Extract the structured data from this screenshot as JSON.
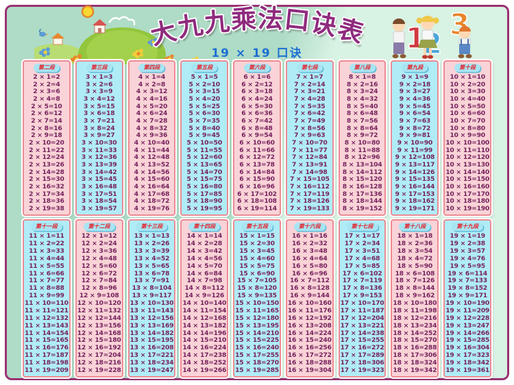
{
  "poster": {
    "title": "大九九乘法口诀表",
    "subtitle": "19 × 19 口诀"
  },
  "colors": {
    "frame_border": "#9b3172",
    "background": "#aedcc6",
    "background_light": "#d8f2e3",
    "column_pink": "#f9d3d7",
    "column_cyan": "#b0ecf6",
    "column_border": "#ec8b94",
    "pill_bg": "#a8e5f3",
    "pill_border": "#62bcd9",
    "pill_text": "#e4232b",
    "equation_text": "#75215c",
    "title_color": "#8f2b7e",
    "subtitle_color": "#1d6fd2"
  },
  "illustrations": {
    "left": "hillside-landscape-with-sun-houses-flowers",
    "right": "three-children-holding-numbers-1-2-3"
  },
  "table": {
    "sections": [
      {
        "columns": [
          {
            "header": "第二段",
            "tint": "pink",
            "equations": [
              "2 × 1=2",
              "2 × 2=4",
              "2 × 3=6",
              "2 × 4=8",
              "2 × 5=10",
              "2 × 6=12",
              "2 × 7=14",
              "2 × 8=16",
              "2 × 9=18",
              "2 × 10=20",
              "2 × 11=22",
              "2 × 12=24",
              "2 × 13=26",
              "2 × 14=28",
              "2 × 15=30",
              "2 × 16=32",
              "2 × 17=34",
              "2 × 18=36",
              "2 × 19=38"
            ]
          },
          {
            "header": "第三段",
            "tint": "cyan",
            "equations": [
              "3 × 1=3",
              "3 × 2=6",
              "3 × 3=9",
              "3 × 4=12",
              "3 × 5=15",
              "3 × 6=18",
              "3 × 7=21",
              "3 × 8=24",
              "3 × 9=27",
              "3 × 10=30",
              "3 × 11=33",
              "3 × 12=36",
              "3 × 13=39",
              "3 × 14=42",
              "3 × 15=45",
              "3 × 16=48",
              "3 × 17=51",
              "3 × 18=54",
              "3 × 19=57"
            ]
          },
          {
            "header": "第四段",
            "tint": "pink",
            "equations": [
              "4 × 1=4",
              "4 × 2=8",
              "4 × 3=12",
              "4 × 4=16",
              "4 × 5=20",
              "4 × 6=24",
              "4 × 7=28",
              "4 × 8=32",
              "4 × 9=36",
              "4 × 10=40",
              "4 × 11=44",
              "4 × 12=48",
              "4 × 13=52",
              "4 × 14=56",
              "4 × 15=60",
              "4 × 16=64",
              "4 × 17=68",
              "4 × 18=72",
              "4 × 19=76"
            ]
          },
          {
            "header": "第五段",
            "tint": "cyan",
            "equations": [
              "5 × 1=5",
              "5 × 2=10",
              "5 × 3=15",
              "5 × 4=20",
              "5 × 5=25",
              "5 × 6=30",
              "5 × 7=35",
              "5 × 8=40",
              "5 × 9=45",
              "5 × 10=50",
              "5 × 11=55",
              "5 × 12=60",
              "5 × 13=65",
              "5 × 14=70",
              "5 × 15=75",
              "5 × 16=80",
              "5 × 17=85",
              "5 × 18=90",
              "5 × 19=95"
            ]
          },
          {
            "header": "第六段",
            "tint": "pink",
            "equations": [
              "6 × 1=6",
              "6 × 2=12",
              "6 × 3=18",
              "6 × 4=24",
              "6 × 5=30",
              "6 × 6=36",
              "6 × 7=42",
              "6 × 8=48",
              "6 × 9=54",
              "6 × 10=60",
              "6 × 11=66",
              "6 × 12=72",
              "6 × 13=78",
              "6 × 14=84",
              "6 × 15=90",
              "6 × 16=96",
              "6 × 17=102",
              "6 × 18=108",
              "6 × 19=114"
            ]
          },
          {
            "header": "第七段",
            "tint": "cyan",
            "equations": [
              "7 × 1=7",
              "7 × 2=14",
              "7 × 3=21",
              "7 × 4=28",
              "7 × 5=35",
              "7 × 6=42",
              "7 × 7=49",
              "7 × 8=56",
              "7 × 9=63",
              "7 × 10=70",
              "7 × 11=77",
              "7 × 12=84",
              "7 × 13=91",
              "7 × 14=98",
              "7 × 15=105",
              "7 × 16=112",
              "7 × 17=119",
              "7 × 18=126",
              "7 × 19=133"
            ]
          },
          {
            "header": "第八段",
            "tint": "pink",
            "equations": [
              "8 × 1=8",
              "8 × 2=16",
              "8 × 3=24",
              "8 × 4=32",
              "8 × 5=40",
              "8 × 6=48",
              "8 × 7=56",
              "8 × 8=64",
              "8 × 9=72",
              "8 × 10=80",
              "8 × 11=88",
              "8 × 12=96",
              "8 × 13=104",
              "8 × 14=112",
              "8 × 15=120",
              "8 × 16=128",
              "8 × 17=136",
              "8 × 18=144",
              "8 × 19=152"
            ]
          },
          {
            "header": "第九段",
            "tint": "cyan",
            "equations": [
              "9 × 1=9",
              "9 × 2=18",
              "9 × 3=27",
              "9 × 4=36",
              "9 × 5=45",
              "9 × 6=54",
              "9 × 7=63",
              "9 × 8=72",
              "9 × 9=81",
              "9 × 10=90",
              "9 × 11=99",
              "9 × 12=108",
              "9 × 13=117",
              "9 × 14=126",
              "9 × 15=135",
              "9 × 16=144",
              "9 × 17=153",
              "9 × 18=162",
              "9 × 19=171"
            ]
          },
          {
            "header": "第十段",
            "tint": "pink",
            "equations": [
              "10 × 1=10",
              "10 × 2=20",
              "10 × 3=30",
              "10 × 4=40",
              "10 × 5=50",
              "10 × 6=60",
              "10 × 7=70",
              "10 × 8=80",
              "10 × 9=90",
              "10 × 10=100",
              "10 × 11=110",
              "10 × 12=120",
              "10 × 13=130",
              "10 × 14=140",
              "10 × 15=150",
              "10 × 16=160",
              "10 × 17=170",
              "10 × 18=180",
              "10 × 19=190"
            ]
          }
        ]
      },
      {
        "columns": [
          {
            "header": "第十一段",
            "tint": "cyan",
            "equations": [
              "11 × 1=11",
              "11 × 2=22",
              "11 × 3=33",
              "11 × 4=44",
              "11 × 5=55",
              "11 × 6=66",
              "11 × 7=77",
              "11 × 8=88",
              "11 × 9=99",
              "11 × 10=110",
              "11 × 11=121",
              "11 × 12=132",
              "11 × 13=143",
              "11 × 14=154",
              "11 × 15=165",
              "11 × 16=176",
              "11 × 17=187",
              "11 × 18=198",
              "11 × 19=209"
            ]
          },
          {
            "header": "第十二段",
            "tint": "pink",
            "equations": [
              "12 × 1=12",
              "12 × 2=24",
              "12 × 3=36",
              "12 × 4=48",
              "12 × 5=60",
              "12 × 6=72",
              "12 × 7=84",
              "12 × 8=96",
              "12 × 9=108",
              "12 × 10=120",
              "12 × 11=132",
              "12 × 12=144",
              "12 × 13=156",
              "12 × 14=168",
              "12 × 15=180",
              "12 × 16=192",
              "12 × 17=204",
              "12 × 18=216",
              "12 × 19=228"
            ]
          },
          {
            "header": "第十三段",
            "tint": "cyan",
            "equations": [
              "13 × 1=13",
              "13 × 2=26",
              "13 × 3=39",
              "13 × 4=52",
              "13 × 5=65",
              "13 × 6=78",
              "13 × 7=91",
              "13 × 8=104",
              "13 × 9=117",
              "13 × 10=130",
              "13 × 11=143",
              "13 × 12=156",
              "13 × 13=169",
              "13 × 14=182",
              "13 × 15=195",
              "13 × 16=208",
              "13 × 17=221",
              "13 × 18=234",
              "13 × 19=247"
            ]
          },
          {
            "header": "第十四段",
            "tint": "pink",
            "equations": [
              "14 × 1=14",
              "14 × 2=28",
              "14 × 3=42",
              "14 × 4=56",
              "14 × 5=70",
              "14 × 6=84",
              "14 × 7=98",
              "14 × 8=112",
              "14 × 9=126",
              "14 × 10=140",
              "14 × 11=154",
              "14 × 12=168",
              "14 × 13=182",
              "14 × 14=196",
              "14 × 15=210",
              "14 × 16=224",
              "14 × 17=238",
              "14 × 18=252",
              "14 × 19=266"
            ]
          },
          {
            "header": "第十五段",
            "tint": "cyan",
            "equations": [
              "15 × 1=15",
              "15 × 2=30",
              "15 × 3=45",
              "15 × 4=60",
              "15 × 5=75",
              "15 × 6=90",
              "15 × 7=105",
              "15 × 8=120",
              "15 × 9=135",
              "15 × 10=150",
              "15 × 11=165",
              "15 × 12=180",
              "15 × 13=195",
              "15 × 14=210",
              "15 × 15=225",
              "15 × 16=240",
              "15 × 17=255",
              "15 × 18=270",
              "15 × 19=285"
            ]
          },
          {
            "header": "第十六段",
            "tint": "pink",
            "equations": [
              "16 × 1=16",
              "16 × 2=32",
              "16 × 3=48",
              "16 × 4=64",
              "16 × 5=80",
              "16 × 6=96",
              "16 × 7=112",
              "16 × 8=128",
              "16 × 9=144",
              "16 × 10=160",
              "16 × 11=176",
              "16 × 12=192",
              "16 × 13=208",
              "16 × 14=224",
              "16 × 15=240",
              "16 × 16=256",
              "16 × 17=272",
              "16 × 18=288",
              "16 × 19=304"
            ]
          },
          {
            "header": "第十七段",
            "tint": "cyan",
            "equations": [
              "17 × 1=17",
              "17 × 2=34",
              "17 × 3=51",
              "17 × 4=68",
              "17 × 5=85",
              "17 × 6=102",
              "17 × 7=119",
              "17 × 8=136",
              "17 × 9=153",
              "17 × 10=170",
              "17 × 11=187",
              "17 × 12=204",
              "17 × 13=221",
              "17 × 14=238",
              "17 × 15=255",
              "17 × 16=272",
              "17 × 17=289",
              "17 × 18=306",
              "17 × 19=323"
            ]
          },
          {
            "header": "第十八段",
            "tint": "pink",
            "equations": [
              "18 × 1=18",
              "18 × 2=36",
              "18 × 3=54",
              "18 × 4=72",
              "18 × 5=90",
              "18 × 6=108",
              "18 × 7=126",
              "18 × 8=144",
              "18 × 9=162",
              "18 × 10=180",
              "18 × 11=198",
              "18 × 12=216",
              "18 × 13=234",
              "18 × 14=252",
              "18 × 15=270",
              "18 × 16=288",
              "18 × 17=306",
              "18 × 18=324",
              "18 × 19=342"
            ]
          },
          {
            "header": "第十九段",
            "tint": "cyan",
            "equations": [
              "19 × 1=19",
              "19 × 2=38",
              "19 × 3=57",
              "19 × 4=76",
              "19 × 5=95",
              "19 × 6=114",
              "19 × 7=133",
              "19 × 8=152",
              "19 × 9=171",
              "19 × 10=190",
              "19 × 11=209",
              "19 × 12=228",
              "19 × 13=247",
              "19 × 14=266",
              "19 × 15=285",
              "19 × 16=304",
              "19 × 17=323",
              "19 × 18=342",
              "19 × 19=361"
            ]
          }
        ]
      }
    ]
  }
}
